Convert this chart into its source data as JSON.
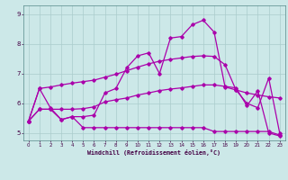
{
  "xlabel": "Windchill (Refroidissement éolien,°C)",
  "xlim": [
    -0.5,
    23.5
  ],
  "ylim": [
    4.75,
    9.3
  ],
  "yticks": [
    5,
    6,
    7,
    8,
    9
  ],
  "xticks": [
    0,
    1,
    2,
    3,
    4,
    5,
    6,
    7,
    8,
    9,
    10,
    11,
    12,
    13,
    14,
    15,
    16,
    17,
    18,
    19,
    20,
    21,
    22,
    23
  ],
  "bg_color": "#cce8e8",
  "line_color": "#aa00aa",
  "grid_color": "#aacccc",
  "lines": [
    {
      "x": [
        0,
        1,
        2,
        3,
        4,
        5,
        6,
        7,
        8,
        9,
        10,
        11,
        12,
        13,
        14,
        15,
        16,
        17,
        18,
        19,
        20,
        21,
        22,
        23
      ],
      "y": [
        5.4,
        6.5,
        5.85,
        5.45,
        5.55,
        5.55,
        5.6,
        6.35,
        6.5,
        7.2,
        7.6,
        7.7,
        7.0,
        8.2,
        8.25,
        8.65,
        8.8,
        8.4,
        6.55,
        6.45,
        6.0,
        5.85,
        6.85,
        5.0
      ]
    },
    {
      "x": [
        0,
        1,
        2,
        3,
        4,
        5,
        6,
        7,
        8,
        9,
        10,
        11,
        12,
        13,
        14,
        15,
        16,
        17,
        18,
        19,
        20,
        21,
        22,
        23
      ],
      "y": [
        5.4,
        6.5,
        6.55,
        6.62,
        6.68,
        6.73,
        6.78,
        6.88,
        6.98,
        7.1,
        7.22,
        7.33,
        7.42,
        7.48,
        7.53,
        7.58,
        7.6,
        7.58,
        7.3,
        6.45,
        6.35,
        6.28,
        6.22,
        6.18
      ]
    },
    {
      "x": [
        0,
        1,
        2,
        3,
        4,
        5,
        6,
        7,
        8,
        9,
        10,
        11,
        12,
        13,
        14,
        15,
        16,
        17,
        18,
        19,
        20,
        21,
        22,
        23
      ],
      "y": [
        5.4,
        5.8,
        5.8,
        5.8,
        5.8,
        5.82,
        5.88,
        6.05,
        6.12,
        6.18,
        6.28,
        6.35,
        6.43,
        6.48,
        6.52,
        6.57,
        6.62,
        6.62,
        6.57,
        6.52,
        5.92,
        6.42,
        5.0,
        4.9
      ]
    },
    {
      "x": [
        0,
        1,
        2,
        3,
        4,
        5,
        6,
        7,
        8,
        9,
        10,
        11,
        12,
        13,
        14,
        15,
        16,
        17,
        18,
        19,
        20,
        21,
        22,
        23
      ],
      "y": [
        5.4,
        5.8,
        5.8,
        5.45,
        5.55,
        5.18,
        5.18,
        5.18,
        5.18,
        5.18,
        5.18,
        5.18,
        5.18,
        5.18,
        5.18,
        5.18,
        5.18,
        5.05,
        5.05,
        5.05,
        5.05,
        5.05,
        5.05,
        4.93
      ]
    }
  ]
}
